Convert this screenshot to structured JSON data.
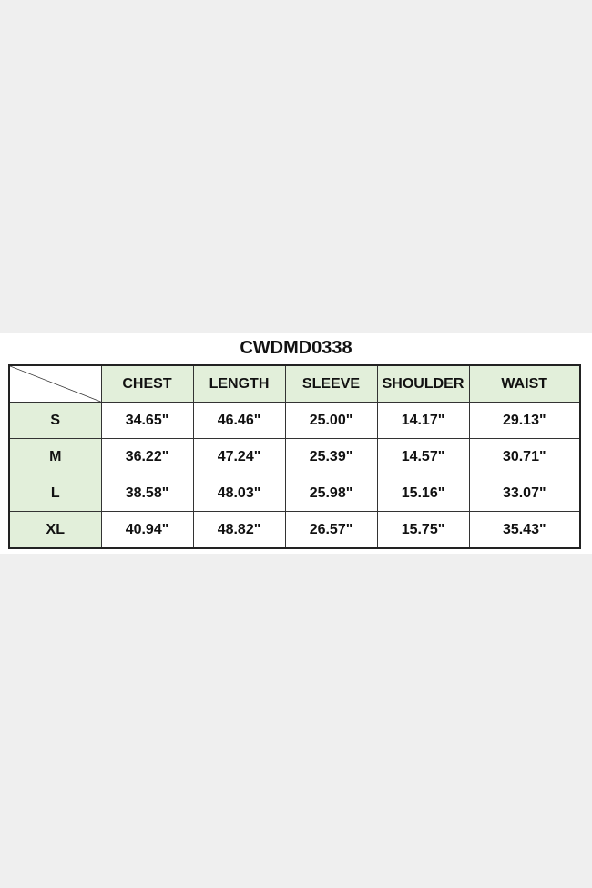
{
  "title": "CWDMD0338",
  "columns": [
    "CHEST",
    "LENGTH",
    "SLEEVE",
    "SHOULDER",
    "WAIST"
  ],
  "rows": [
    {
      "size": "S",
      "values": [
        "34.65\"",
        "46.46\"",
        "25.00\"",
        "14.17\"",
        "29.13\""
      ]
    },
    {
      "size": "M",
      "values": [
        "36.22\"",
        "47.24\"",
        "25.39\"",
        "14.57\"",
        "30.71\""
      ]
    },
    {
      "size": "L",
      "values": [
        "38.58\"",
        "48.03\"",
        "25.98\"",
        "15.16\"",
        "33.07\""
      ]
    },
    {
      "size": "XL",
      "values": [
        "40.94\"",
        "48.82\"",
        "26.57\"",
        "15.75\"",
        "35.43\""
      ]
    }
  ],
  "colors": {
    "header_fill": "#e2efda",
    "background": "#efefef",
    "band": "#ffffff"
  }
}
